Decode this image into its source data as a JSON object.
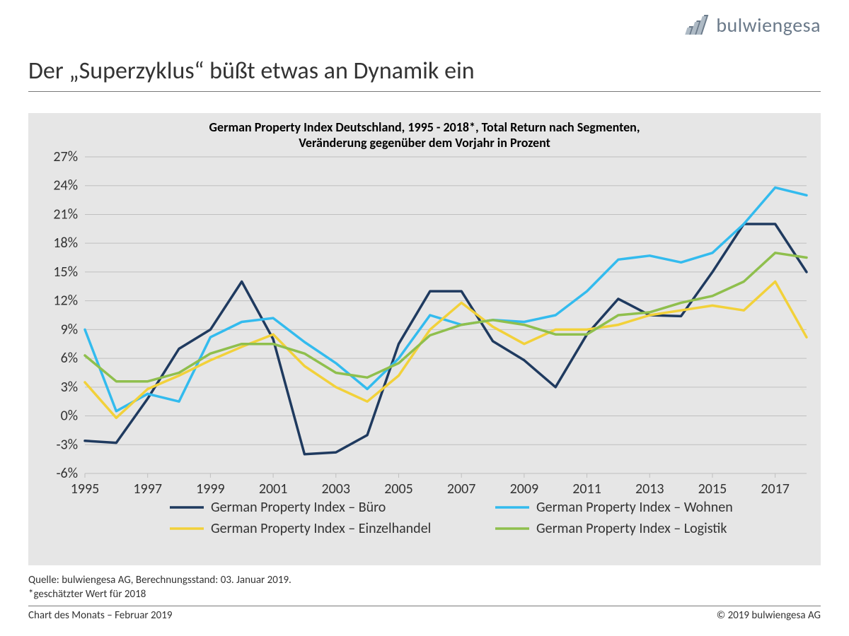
{
  "brand": {
    "name": "bulwiengesa",
    "color": "#6b7a8a"
  },
  "page_title": "Der „Superzyklus“ büßt etwas an Dynamik ein",
  "chart": {
    "type": "line",
    "title_line1": "German Property Index Deutschland, 1995 - 2018*, Total Return nach Segmenten,",
    "title_line2": "Veränderung gegenüber dem Vorjahr in Prozent",
    "title_fontsize": 18,
    "title_fontweight": "bold",
    "plot_background": "#e6e6e6",
    "page_background": "#ffffff",
    "gridline_color": "#bfbfbf",
    "axis_label_color": "#333333",
    "axis_fontsize": 20,
    "line_width": 3.5,
    "x": {
      "min": 1995,
      "max": 2018,
      "ticks": [
        1995,
        1997,
        1999,
        2001,
        2003,
        2005,
        2007,
        2009,
        2011,
        2013,
        2015,
        2017
      ],
      "tick_labels": [
        "1995",
        "1997",
        "1999",
        "2001",
        "2003",
        "2005",
        "2007",
        "2009",
        "2011",
        "2013",
        "2015",
        "2017"
      ]
    },
    "y": {
      "min": -6,
      "max": 27,
      "step": 3,
      "ticks": [
        -6,
        -3,
        0,
        3,
        6,
        9,
        12,
        15,
        18,
        21,
        24,
        27
      ],
      "tick_labels": [
        "-6%",
        "-3%",
        "0%",
        "3%",
        "6%",
        "9%",
        "12%",
        "15%",
        "18%",
        "21%",
        "24%",
        "27%"
      ]
    },
    "series": [
      {
        "key": "buero",
        "label": "German Property Index – Büro",
        "color": "#1f3a5f",
        "values": [
          -2.6,
          -2.8,
          1.8,
          7.0,
          9.0,
          14.0,
          8.0,
          -4.0,
          -3.8,
          -2.0,
          7.5,
          13.0,
          13.0,
          7.8,
          5.8,
          3.0,
          8.5,
          12.2,
          10.5,
          10.4,
          15.0,
          20.0,
          20.0,
          15.0
        ]
      },
      {
        "key": "wohnen",
        "label": "German Property Index – Wohnen",
        "color": "#33bbee",
        "values": [
          9.0,
          0.5,
          2.3,
          1.5,
          8.2,
          9.8,
          10.2,
          7.7,
          5.5,
          2.8,
          6.0,
          10.5,
          9.5,
          10.0,
          9.8,
          10.5,
          13.0,
          16.3,
          16.7,
          16.0,
          17.0,
          20.0,
          23.8,
          23.0
        ]
      },
      {
        "key": "einzelhandel",
        "label": "German Property Index – Einzelhandel",
        "color": "#f2d13a",
        "values": [
          3.5,
          -0.2,
          2.8,
          4.2,
          5.8,
          7.2,
          8.5,
          5.2,
          3.0,
          1.5,
          4.2,
          9.0,
          11.8,
          9.3,
          7.5,
          9.0,
          9.0,
          9.5,
          10.5,
          11.0,
          11.5,
          11.0,
          14.0,
          8.2
        ]
      },
      {
        "key": "logistik",
        "label": "German Property Index – Logistik",
        "color": "#8fbf4d",
        "values": [
          6.3,
          3.6,
          3.6,
          4.5,
          6.5,
          7.5,
          7.5,
          6.5,
          4.5,
          4.0,
          5.5,
          8.4,
          9.5,
          10.0,
          9.5,
          8.5,
          8.5,
          10.5,
          10.8,
          11.8,
          12.5,
          14.0,
          17.0,
          16.5
        ]
      }
    ],
    "legend": {
      "fontsize": 20,
      "columns": 2,
      "line_length": 48
    }
  },
  "footnotes": {
    "line1": "Quelle: bulwiengesa AG, Berechnungsstand: 03. Januar 2019.",
    "line2": "*geschätzter Wert für 2018"
  },
  "bottom": {
    "left": "Chart des Monats – Februar 2019",
    "right": "© 2019 bulwiengesa AG"
  }
}
